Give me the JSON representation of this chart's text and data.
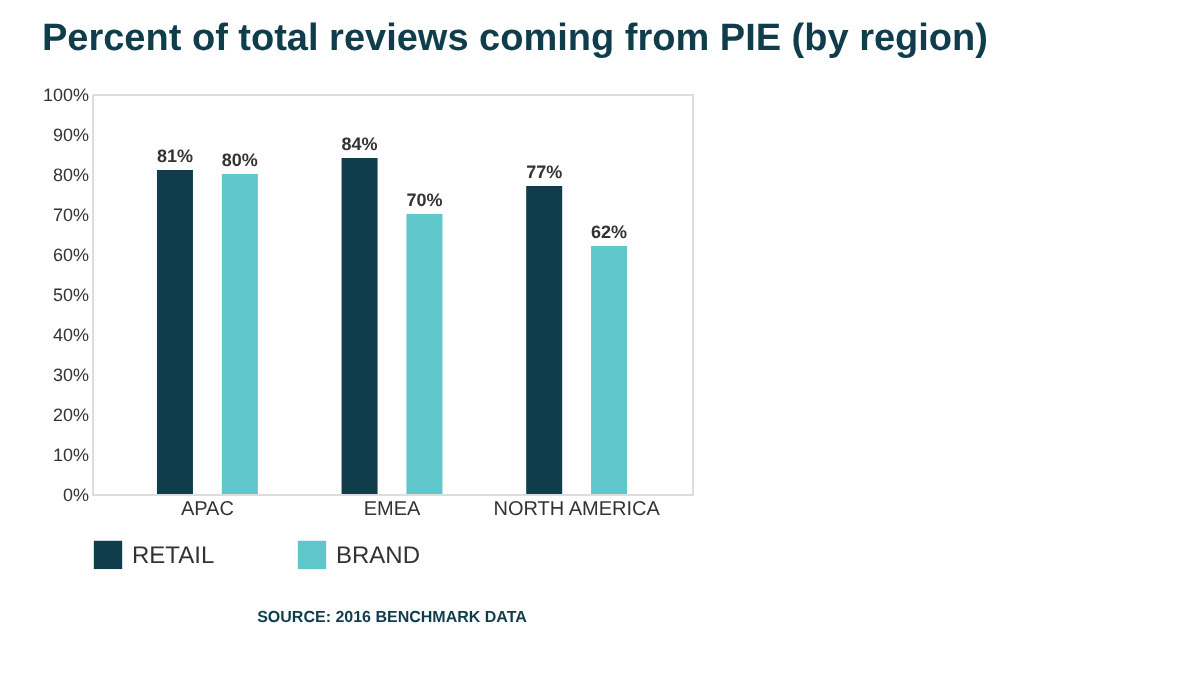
{
  "chart_data": {
    "type": "bar",
    "title": "Percent of total reviews coming from PIE (by region)",
    "categories": [
      "APAC",
      "EMEA",
      "NORTH AMERICA"
    ],
    "series": [
      {
        "name": "RETAIL",
        "color": "#0f3d4c",
        "values": [
          81,
          84,
          77
        ],
        "value_labels": [
          "81%",
          "84%",
          "77%"
        ]
      },
      {
        "name": "BRAND",
        "color": "#5fc6c9",
        "values": [
          80,
          70,
          62
        ],
        "value_labels": [
          "80%",
          "70%",
          "62%"
        ]
      }
    ],
    "ylim": [
      0,
      100
    ],
    "yticks": [
      {
        "value": 0,
        "label": "0%"
      },
      {
        "value": 10,
        "label": "10%"
      },
      {
        "value": 20,
        "label": "20%"
      },
      {
        "value": 30,
        "label": "30%"
      },
      {
        "value": 40,
        "label": "40%"
      },
      {
        "value": 50,
        "label": "50%"
      },
      {
        "value": 60,
        "label": "60%"
      },
      {
        "value": 70,
        "label": "70%"
      },
      {
        "value": 80,
        "label": "80%"
      },
      {
        "value": 90,
        "label": "90%"
      },
      {
        "value": 100,
        "label": "100%"
      }
    ],
    "grid": false,
    "legend": "bottom",
    "annotations": [
      "SOURCE: 2016 BENCHMARK DATA"
    ]
  }
}
